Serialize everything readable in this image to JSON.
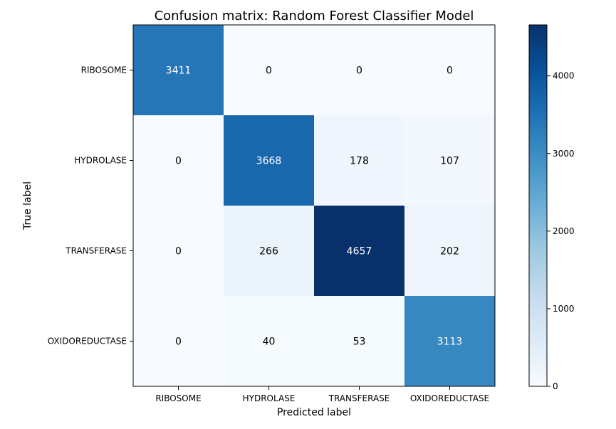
{
  "chart_data": {
    "type": "heatmap",
    "title": "Confusion matrix: Random Forest Classifier Model",
    "xlabel": "Predicted label",
    "ylabel": "True label",
    "x_categories": [
      "RIBOSOME",
      "HYDROLASE",
      "TRANSFERASE",
      "OXIDOREDUCTASE"
    ],
    "y_categories": [
      "RIBOSOME",
      "HYDROLASE",
      "TRANSFERASE",
      "OXIDOREDUCTASE"
    ],
    "matrix": [
      [
        3411,
        0,
        0,
        0
      ],
      [
        0,
        3668,
        178,
        107
      ],
      [
        0,
        266,
        4657,
        202
      ],
      [
        0,
        40,
        53,
        3113
      ]
    ],
    "colormap": "Blues",
    "colorbar": {
      "range": [
        0,
        4657
      ],
      "ticks": [
        0,
        1000,
        2000,
        3000,
        4000
      ]
    },
    "grid": false
  }
}
